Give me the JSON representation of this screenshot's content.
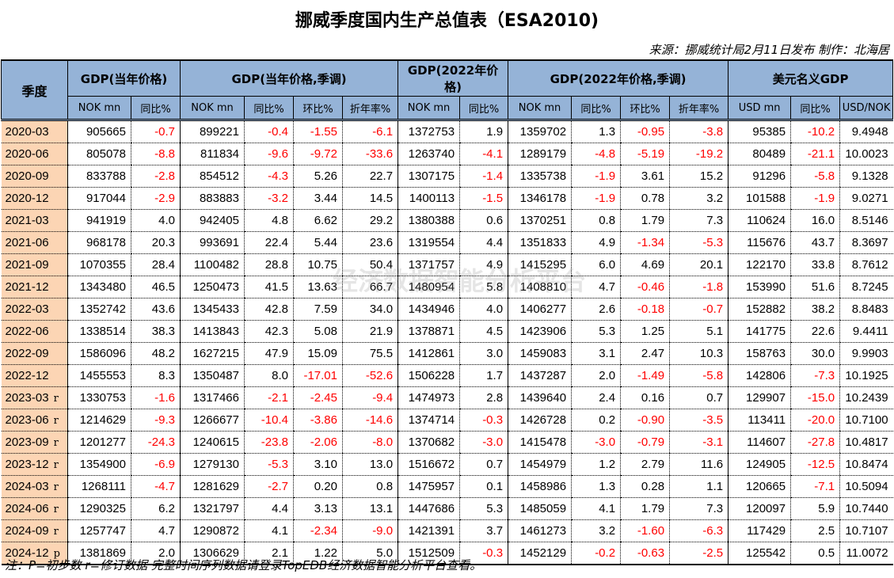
{
  "title": "挪威季度国内生产总值表（ESA2010)",
  "source": "来源：挪威统计局2月11日发布 制作：北海居",
  "header": {
    "quarter": "季度",
    "groups": [
      "GDP(当年价格)",
      "GDP(当年价格,季调)",
      "GDP(2022年价格)",
      "GDP(2022年价格,季调)",
      "美元名义GDP"
    ],
    "subs": [
      "NOK mn",
      "同比%",
      "NOK mn",
      "同比%",
      "环比%",
      "折年率%",
      "NOK mn",
      "同比%",
      "NOK mn",
      "同比%",
      "环比%",
      "折年率%",
      "USD mn",
      "同比%",
      "USD/NOK"
    ]
  },
  "rows": [
    {
      "q": "2020-03",
      "f": "",
      "v": [
        "905665",
        "-0.7",
        "899221",
        "-0.4",
        "-1.55",
        "-6.1",
        "1372753",
        "1.9",
        "1359702",
        "1.3",
        "-0.95",
        "-3.8",
        "95385",
        "-10.2",
        "9.4948"
      ]
    },
    {
      "q": "2020-06",
      "f": "",
      "v": [
        "805078",
        "-8.8",
        "811834",
        "-9.6",
        "-9.72",
        "-33.6",
        "1263740",
        "-4.1",
        "1289179",
        "-4.8",
        "-5.19",
        "-19.2",
        "80489",
        "-21.1",
        "10.0023"
      ]
    },
    {
      "q": "2020-09",
      "f": "",
      "v": [
        "833788",
        "-2.8",
        "854512",
        "-4.3",
        "5.26",
        "22.7",
        "1307175",
        "-1.4",
        "1335738",
        "-1.9",
        "3.61",
        "15.2",
        "91296",
        "-5.8",
        "9.1328"
      ]
    },
    {
      "q": "2020-12",
      "f": "",
      "v": [
        "917044",
        "-2.9",
        "883883",
        "-3.2",
        "3.44",
        "14.5",
        "1400113",
        "-1.5",
        "1346178",
        "-1.9",
        "0.78",
        "3.2",
        "101588",
        "-1.9",
        "9.0271"
      ]
    },
    {
      "q": "2021-03",
      "f": "",
      "v": [
        "941919",
        "4.0",
        "942405",
        "4.8",
        "6.62",
        "29.2",
        "1380388",
        "0.6",
        "1370251",
        "0.8",
        "1.79",
        "7.3",
        "110624",
        "16.0",
        "8.5146"
      ]
    },
    {
      "q": "2021-06",
      "f": "",
      "v": [
        "968178",
        "20.3",
        "993691",
        "22.4",
        "5.44",
        "23.6",
        "1319554",
        "4.4",
        "1351833",
        "4.9",
        "-1.34",
        "-5.3",
        "115676",
        "43.7",
        "8.3697"
      ]
    },
    {
      "q": "2021-09",
      "f": "",
      "v": [
        "1070355",
        "28.4",
        "1100482",
        "28.8",
        "10.75",
        "50.4",
        "1371757",
        "4.9",
        "1415295",
        "6.0",
        "4.69",
        "20.1",
        "122170",
        "33.8",
        "8.7612"
      ]
    },
    {
      "q": "2021-12",
      "f": "",
      "v": [
        "1343480",
        "46.5",
        "1250473",
        "41.5",
        "13.63",
        "66.7",
        "1480954",
        "5.8",
        "1408810",
        "4.7",
        "-0.46",
        "-1.8",
        "153990",
        "51.6",
        "8.7245"
      ]
    },
    {
      "q": "2022-03",
      "f": "",
      "v": [
        "1352742",
        "43.6",
        "1345433",
        "42.8",
        "7.59",
        "34.0",
        "1434946",
        "4.0",
        "1406277",
        "2.6",
        "-0.18",
        "-0.7",
        "152882",
        "38.2",
        "8.8483"
      ]
    },
    {
      "q": "2022-06",
      "f": "",
      "v": [
        "1338514",
        "38.3",
        "1413843",
        "42.3",
        "5.08",
        "21.9",
        "1378871",
        "4.5",
        "1423906",
        "5.3",
        "1.25",
        "5.1",
        "141775",
        "22.6",
        "9.4411"
      ]
    },
    {
      "q": "2022-09",
      "f": "",
      "v": [
        "1586096",
        "48.2",
        "1627215",
        "47.9",
        "15.09",
        "75.5",
        "1412861",
        "3.0",
        "1459083",
        "3.1",
        "2.47",
        "10.3",
        "158763",
        "30.0",
        "9.9903"
      ]
    },
    {
      "q": "2022-12",
      "f": "",
      "v": [
        "1455553",
        "8.3",
        "1350487",
        "8.0",
        "-17.01",
        "-52.6",
        "1506228",
        "1.7",
        "1437287",
        "2.0",
        "-1.49",
        "-5.8",
        "142806",
        "-7.3",
        "10.1925"
      ]
    },
    {
      "q": "2023-03",
      "f": "r",
      "v": [
        "1330753",
        "-1.6",
        "1317466",
        "-2.1",
        "-2.45",
        "-9.4",
        "1474973",
        "2.8",
        "1439640",
        "2.4",
        "0.16",
        "0.7",
        "129907",
        "-15.0",
        "10.2439"
      ]
    },
    {
      "q": "2023-06",
      "f": "r",
      "v": [
        "1214629",
        "-9.3",
        "1266677",
        "-10.4",
        "-3.86",
        "-14.6",
        "1374714",
        "-0.3",
        "1426728",
        "0.2",
        "-0.90",
        "-3.5",
        "113411",
        "-20.0",
        "10.7100"
      ]
    },
    {
      "q": "2023-09",
      "f": "r",
      "v": [
        "1201277",
        "-24.3",
        "1240615",
        "-23.8",
        "-2.06",
        "-8.0",
        "1370682",
        "-3.0",
        "1415478",
        "-3.0",
        "-0.79",
        "-3.1",
        "114607",
        "-27.8",
        "10.4817"
      ]
    },
    {
      "q": "2023-12",
      "f": "r",
      "v": [
        "1354900",
        "-6.9",
        "1279130",
        "-5.3",
        "3.10",
        "13.0",
        "1516672",
        "0.7",
        "1454979",
        "1.2",
        "2.79",
        "11.6",
        "124905",
        "-12.5",
        "10.8474"
      ]
    },
    {
      "q": "2024-03",
      "f": "r",
      "v": [
        "1268111",
        "-4.7",
        "1281629",
        "-2.7",
        "0.20",
        "0.8",
        "1475957",
        "0.1",
        "1458986",
        "1.3",
        "0.28",
        "1.1",
        "120665",
        "-7.1",
        "10.5094"
      ]
    },
    {
      "q": "2024-06",
      "f": "r",
      "v": [
        "1290325",
        "6.2",
        "1321797",
        "4.4",
        "3.13",
        "13.1",
        "1447686",
        "5.3",
        "1485059",
        "4.1",
        "1.79",
        "7.3",
        "120097",
        "5.9",
        "10.7440"
      ]
    },
    {
      "q": "2024-09",
      "f": "r",
      "v": [
        "1257747",
        "4.7",
        "1290872",
        "4.1",
        "-2.34",
        "-9.0",
        "1421391",
        "3.7",
        "1461273",
        "3.2",
        "-1.60",
        "-6.3",
        "117429",
        "2.5",
        "10.7107"
      ]
    },
    {
      "q": "2024-12",
      "f": "p",
      "v": [
        "1381869",
        "2.0",
        "1306629",
        "2.1",
        "1.22",
        "5.0",
        "1512509",
        "-0.3",
        "1452129",
        "-0.2",
        "-0.63",
        "-2.5",
        "125542",
        "0.5",
        "11.0072"
      ]
    }
  ],
  "note": "注：P=初步数 r=修订数据 完整时间序列数据请登录TopEDB经济数据智能分析平台查看。",
  "watermark": "经济数据智能分析平台",
  "colors": {
    "header_bg": "#95b3d7",
    "quarter_bg": "#fcd5b4",
    "negative": "#ff0000"
  }
}
